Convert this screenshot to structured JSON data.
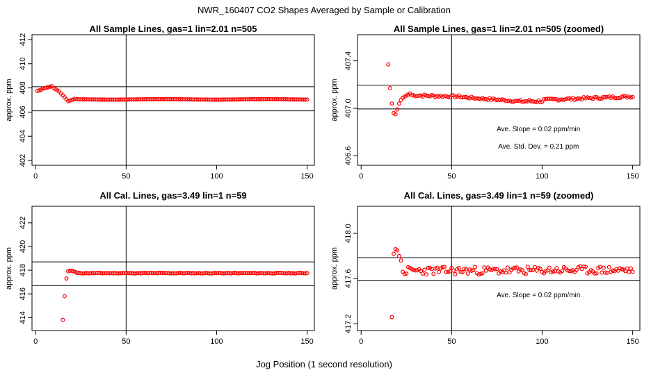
{
  "figure": {
    "title": "NWR_160407  CO2 Shapes Averaged by Sample or Calibration",
    "xlabel": "Jog Position (1 second resolution)"
  },
  "colors": {
    "points": "#ff0000",
    "axes": "#000000",
    "background": "#ffffff"
  },
  "chart_data": [
    {
      "type": "scatter",
      "title": "All Sample Lines, gas=1 lin=2.01 n=505",
      "ylabel": "approx. ppm",
      "xlim": [
        -2,
        154
      ],
      "ylim": [
        401.6,
        412.4
      ],
      "xticks": [
        0,
        50,
        100,
        150
      ],
      "yticks": [
        402,
        404,
        406,
        408,
        410,
        412
      ],
      "vline": 50,
      "hlines": [
        406.1,
        408.1
      ],
      "annotations": [],
      "series": [
        {
          "kind": "sample_full"
        }
      ]
    },
    {
      "type": "scatter",
      "title": "All Sample Lines, gas=1 lin=2.01 n=505 (zoomed)",
      "ylabel": "approx. ppm",
      "xlim": [
        -2,
        154
      ],
      "ylim": [
        406.52,
        407.62
      ],
      "xticks": [
        0,
        50,
        100,
        150
      ],
      "yticks": [
        406.6,
        407.0,
        407.4
      ],
      "vline": 50,
      "hlines": [
        406.995,
        407.195
      ],
      "annotations": [
        "Ave. Slope =  0.02  ppm/min",
        "Ave. Std. Dev. =  0.21  ppm"
      ],
      "series": [
        {
          "kind": "sample_zoom"
        }
      ]
    },
    {
      "type": "scatter",
      "title": "All Cal. Lines, gas=3.49 lin=1 n=59",
      "ylabel": "approx. ppm",
      "xlim": [
        -2,
        154
      ],
      "ylim": [
        412.9,
        423.4
      ],
      "xticks": [
        0,
        50,
        100,
        150
      ],
      "yticks": [
        414,
        416,
        418,
        420,
        422
      ],
      "vline": 50,
      "hlines": [
        416.7,
        418.7
      ],
      "annotations": [],
      "series": [
        {
          "kind": "cal_full"
        }
      ]
    },
    {
      "type": "scatter",
      "title": "All Cal. Lines, gas=3.49 lin=1 n=59 (zoomed)",
      "ylabel": "approx. ppm",
      "xlim": [
        -2,
        154
      ],
      "ylim": [
        417.14,
        418.24
      ],
      "xticks": [
        0,
        50,
        100,
        150
      ],
      "yticks": [
        417.2,
        417.6,
        418.0
      ],
      "vline": 50,
      "hlines": [
        417.585,
        417.785
      ],
      "annotations": [
        "Ave. Slope =  0.02  ppm/min"
      ],
      "series": [
        {
          "kind": "cal_zoom"
        }
      ]
    }
  ]
}
